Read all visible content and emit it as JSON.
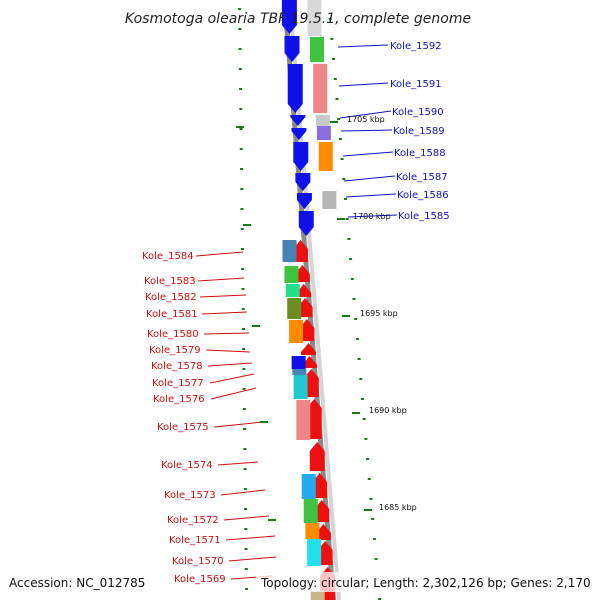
{
  "title": "Kosmotoga olearia TBF 19.5.1, complete genome",
  "footer": {
    "accession": "Accession: NC_012785",
    "topology": "Topology: circular; Length: 2,302,126 bp; Genes: 2,170"
  },
  "colors": {
    "forward": "#1010e8",
    "reverse": "#ee1010",
    "backbone": "#8a8a8a",
    "tick": "#1a7a1a",
    "label_blue": "#1010c8",
    "label_red": "#cc1010"
  },
  "ruler_labels": [
    "1705 kbp",
    "1700 kbp",
    "1695 kbp",
    "1690 kbp",
    "1685 kbp"
  ],
  "blue_labels": [
    "Kole_1592",
    "Kole_1591",
    "Kole_1590",
    "Kole_1589",
    "Kole_1588",
    "Kole_1587",
    "Kole_1586",
    "Kole_1585"
  ],
  "red_labels": [
    "Kole_1584",
    "Kole_1583",
    "Kole_1582",
    "Kole_1581",
    "Kole_1580",
    "Kole_1579",
    "Kole_1578",
    "Kole_1577",
    "Kole_1576",
    "Kole_1575",
    "Kole_1574",
    "Kole_1573",
    "Kole_1572",
    "Kole_1571",
    "Kole_1570",
    "Kole_1569"
  ]
}
